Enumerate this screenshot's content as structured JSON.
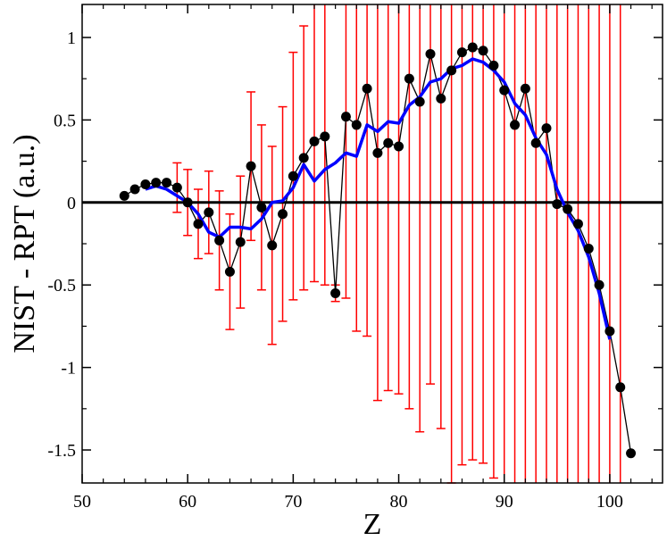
{
  "chart_data": {
    "type": "scatter",
    "xlabel": "Z",
    "ylabel": "NIST - RPT (a.u.)",
    "xlim": [
      50,
      105
    ],
    "ylim": [
      -1.7,
      1.2
    ],
    "x_ticks": [
      50,
      60,
      70,
      80,
      90,
      100
    ],
    "x_tick_labels": [
      "50",
      "60",
      "70",
      "80",
      "90",
      "100"
    ],
    "y_ticks": [
      -1.5,
      -1,
      -0.5,
      0,
      0.5,
      1
    ],
    "y_tick_labels": [
      "-1.5",
      "-1",
      "-0.5",
      "0",
      "0.5",
      "1"
    ],
    "grid": false,
    "zero_line": true,
    "colors": {
      "points": "#000000",
      "errorbars": "#ff0000",
      "fit": "#0000ff",
      "axes": "#000000"
    },
    "series": [
      {
        "style": "markers-with-line",
        "points": [
          {
            "x": 54,
            "y": 0.04
          },
          {
            "x": 55,
            "y": 0.08
          },
          {
            "x": 56,
            "y": 0.11
          },
          {
            "x": 57,
            "y": 0.12
          },
          {
            "x": 58,
            "y": 0.12
          },
          {
            "x": 59,
            "y": 0.09,
            "err": 0.15
          },
          {
            "x": 60,
            "y": 0.0,
            "err": 0.2
          },
          {
            "x": 61,
            "y": -0.13,
            "err": 0.21
          },
          {
            "x": 62,
            "y": -0.06,
            "err": 0.25
          },
          {
            "x": 63,
            "y": -0.23,
            "err": 0.3
          },
          {
            "x": 64,
            "y": -0.42,
            "err": 0.35
          },
          {
            "x": 65,
            "y": -0.24,
            "err": 0.4
          },
          {
            "x": 66,
            "y": 0.22,
            "err": 0.45
          },
          {
            "x": 67,
            "y": -0.03,
            "err": 0.5
          },
          {
            "x": 68,
            "y": -0.26,
            "err": 0.6
          },
          {
            "x": 69,
            "y": -0.07,
            "err": 0.65
          },
          {
            "x": 70,
            "y": 0.16,
            "err": 0.75
          },
          {
            "x": 71,
            "y": 0.27,
            "err": 0.8
          },
          {
            "x": 72,
            "y": 0.37,
            "err": 0.85
          },
          {
            "x": 73,
            "y": 0.4,
            "err": 0.9
          },
          {
            "x": 74,
            "y": -0.55,
            "err": 0.05
          },
          {
            "x": 75,
            "y": 0.52,
            "err": 1.1
          },
          {
            "x": 76,
            "y": 0.47,
            "err": 1.25
          },
          {
            "x": 77,
            "y": 0.69,
            "err": 1.5
          },
          {
            "x": 78,
            "y": 0.3,
            "err": 1.5
          },
          {
            "x": 79,
            "y": 0.36,
            "err": 1.5
          },
          {
            "x": 80,
            "y": 0.34,
            "err": 1.5
          },
          {
            "x": 81,
            "y": 0.75,
            "err": 2.0
          },
          {
            "x": 82,
            "y": 0.61,
            "err": 2.0
          },
          {
            "x": 83,
            "y": 0.9,
            "err": 2.0
          },
          {
            "x": 84,
            "y": 0.63,
            "err": 2.0
          },
          {
            "x": 85,
            "y": 0.8,
            "err": 2.5
          },
          {
            "x": 86,
            "y": 0.91,
            "err": 2.5
          },
          {
            "x": 87,
            "y": 0.94,
            "err": 2.5
          },
          {
            "x": 88,
            "y": 0.92,
            "err": 2.5
          },
          {
            "x": 89,
            "y": 0.83,
            "err": 2.5
          },
          {
            "x": 90,
            "y": 0.68,
            "err": 3.0
          },
          {
            "x": 91,
            "y": 0.47,
            "err": 3.0
          },
          {
            "x": 92,
            "y": 0.69,
            "err": 3.0
          },
          {
            "x": 93,
            "y": 0.36,
            "err": 3.0
          },
          {
            "x": 94,
            "y": 0.45,
            "err": 3.0
          },
          {
            "x": 95,
            "y": -0.01,
            "err": 3.0
          },
          {
            "x": 96,
            "y": -0.04,
            "err": 3.0
          },
          {
            "x": 97,
            "y": -0.13,
            "err": 3.0
          },
          {
            "x": 98,
            "y": -0.28,
            "err": 3.0
          },
          {
            "x": 99,
            "y": -0.5,
            "err": 3.0
          },
          {
            "x": 100,
            "y": -0.78,
            "err": 3.0
          },
          {
            "x": 101,
            "y": -1.12,
            "err": 3.0
          },
          {
            "x": 102,
            "y": -1.52
          }
        ]
      },
      {
        "style": "line",
        "points": [
          {
            "x": 56,
            "y": 0.08
          },
          {
            "x": 57,
            "y": 0.1
          },
          {
            "x": 58,
            "y": 0.08
          },
          {
            "x": 59,
            "y": 0.04
          },
          {
            "x": 60,
            "y": 0.0
          },
          {
            "x": 61,
            "y": -0.07
          },
          {
            "x": 62,
            "y": -0.18
          },
          {
            "x": 63,
            "y": -0.21
          },
          {
            "x": 64,
            "y": -0.15
          },
          {
            "x": 65,
            "y": -0.15
          },
          {
            "x": 66,
            "y": -0.16
          },
          {
            "x": 67,
            "y": -0.1
          },
          {
            "x": 68,
            "y": 0.0
          },
          {
            "x": 69,
            "y": 0.01
          },
          {
            "x": 70,
            "y": 0.09
          },
          {
            "x": 71,
            "y": 0.23
          },
          {
            "x": 72,
            "y": 0.13
          },
          {
            "x": 73,
            "y": 0.2
          },
          {
            "x": 74,
            "y": 0.24
          },
          {
            "x": 75,
            "y": 0.3
          },
          {
            "x": 76,
            "y": 0.28
          },
          {
            "x": 77,
            "y": 0.47
          },
          {
            "x": 78,
            "y": 0.43
          },
          {
            "x": 79,
            "y": 0.49
          },
          {
            "x": 80,
            "y": 0.48
          },
          {
            "x": 81,
            "y": 0.59
          },
          {
            "x": 82,
            "y": 0.64
          },
          {
            "x": 83,
            "y": 0.73
          },
          {
            "x": 84,
            "y": 0.75
          },
          {
            "x": 85,
            "y": 0.81
          },
          {
            "x": 86,
            "y": 0.83
          },
          {
            "x": 87,
            "y": 0.87
          },
          {
            "x": 88,
            "y": 0.85
          },
          {
            "x": 89,
            "y": 0.8
          },
          {
            "x": 90,
            "y": 0.73
          },
          {
            "x": 91,
            "y": 0.6
          },
          {
            "x": 92,
            "y": 0.53
          },
          {
            "x": 93,
            "y": 0.39
          },
          {
            "x": 94,
            "y": 0.29
          },
          {
            "x": 95,
            "y": 0.08
          },
          {
            "x": 96,
            "y": -0.06
          },
          {
            "x": 97,
            "y": -0.17
          },
          {
            "x": 98,
            "y": -0.33
          },
          {
            "x": 99,
            "y": -0.55
          },
          {
            "x": 100,
            "y": -0.83
          }
        ]
      }
    ]
  }
}
